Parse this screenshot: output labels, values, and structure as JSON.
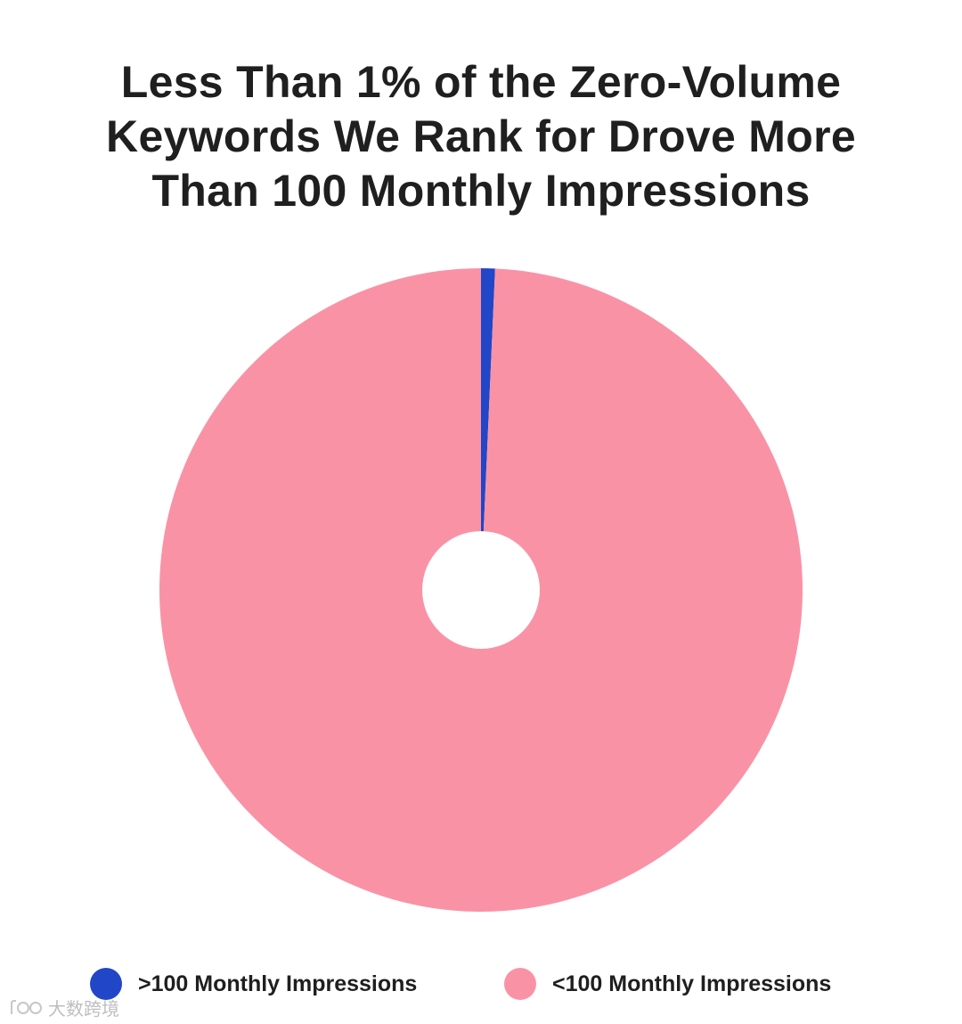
{
  "chart_data": {
    "type": "pie",
    "title": "Less Than 1% of the Zero-Volume Keywords We Rank for Drove More Than 100 Monthly Impressions",
    "title_lines": [
      "Less Than 1% of the Zero-Volume",
      "Keywords We Rank for Drove More",
      "Than 100 Monthly Impressions"
    ],
    "categories": [
      ">100 Monthly Impressions",
      "<100 Monthly Impressions"
    ],
    "values": [
      0.7,
      99.3
    ],
    "colors": [
      "#2146c7",
      "#fa92a6"
    ],
    "donut": true,
    "legend_position": "bottom"
  },
  "watermark": {
    "logo": "dashujk-logo-icon",
    "text": "大数跨境"
  }
}
